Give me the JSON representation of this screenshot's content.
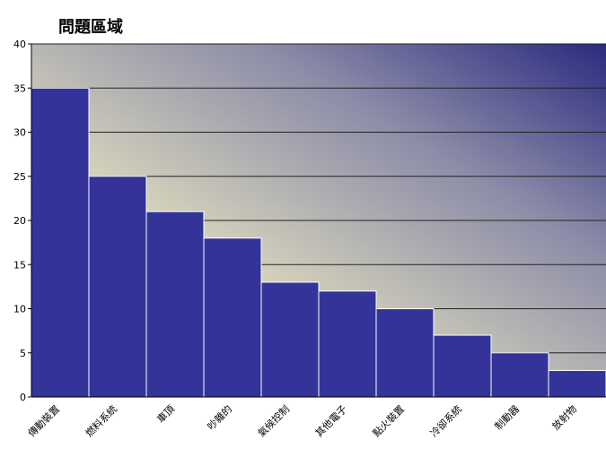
{
  "chart_data": {
    "type": "bar",
    "title": "問題區域",
    "categories": [
      "傳動裝置",
      "燃料系統",
      "車頂",
      "吵雜的",
      "氣候控制",
      "其他電子",
      "點火裝置",
      "冷卻系統",
      "制動器",
      "放射物"
    ],
    "values": [
      35,
      25,
      21,
      18,
      13,
      12,
      10,
      7,
      5,
      3
    ],
    "color": "#333399",
    "ylim": [
      0,
      40
    ],
    "yticks": [
      0,
      5,
      10,
      15,
      20,
      25,
      30,
      35,
      40
    ],
    "grid": true
  }
}
